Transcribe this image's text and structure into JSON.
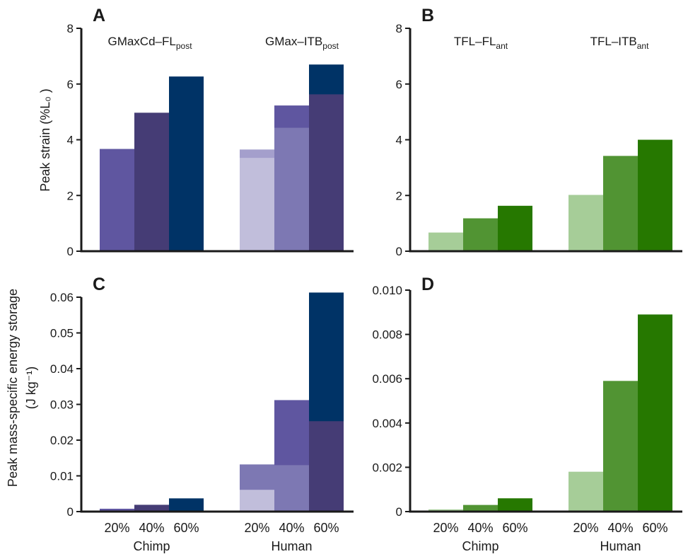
{
  "figure": {
    "ylabel_top": "Peak strain (%L₀ )",
    "ylabel_bottom_line1": "Peak mass-specific energy storage",
    "ylabel_bottom_line2": "(J kg⁻¹)",
    "colors": {
      "purple": [
        "#c1bedb",
        "#7d78b3",
        "#5f56a0",
        "#453c75",
        "#003366"
      ],
      "purple_light_cap": "#a49fcc",
      "green": [
        "#a6cd98",
        "#519433",
        "#267800"
      ]
    }
  },
  "chart_data": [
    {
      "panel": "A",
      "type": "bar",
      "stacked_overlay": true,
      "ylabel": "Peak strain (%L0 )",
      "ylim": [
        0,
        8
      ],
      "yticks": [
        "0",
        "2",
        "4",
        "6",
        "8"
      ],
      "groups": [
        "Chimp",
        "Human"
      ],
      "categories": [
        "20%",
        "40%",
        "60%"
      ],
      "series_labels": [
        {
          "main": "GMaxCd–FL",
          "sub": "post"
        },
        {
          "main": "GMax–ITB",
          "sub": "post"
        }
      ],
      "bars": [
        {
          "group": "Chimp",
          "category": "20%",
          "value": 3.67,
          "base": null
        },
        {
          "group": "Chimp",
          "category": "40%",
          "value": 4.97,
          "base": null
        },
        {
          "group": "Chimp",
          "category": "60%",
          "value": 6.27,
          "base": null
        },
        {
          "group": "Human",
          "category": "20%",
          "value": 3.65,
          "base": 3.35
        },
        {
          "group": "Human",
          "category": "40%",
          "value": 5.23,
          "base": 4.43
        },
        {
          "group": "Human",
          "category": "60%",
          "value": 6.7,
          "base": 5.63
        }
      ]
    },
    {
      "panel": "B",
      "type": "bar",
      "ylim": [
        0,
        8
      ],
      "yticks": [
        "0",
        "2",
        "4",
        "6",
        "8"
      ],
      "groups": [
        "Chimp",
        "Human"
      ],
      "categories": [
        "20%",
        "40%",
        "60%"
      ],
      "series_labels": [
        {
          "main": "TFL–FL",
          "sub": "ant"
        },
        {
          "main": "TFL–ITB",
          "sub": "ant"
        }
      ],
      "bars": [
        {
          "group": "Chimp",
          "category": "20%",
          "value": 0.67
        },
        {
          "group": "Chimp",
          "category": "40%",
          "value": 1.18
        },
        {
          "group": "Chimp",
          "category": "60%",
          "value": 1.63
        },
        {
          "group": "Human",
          "category": "20%",
          "value": 2.02
        },
        {
          "group": "Human",
          "category": "40%",
          "value": 3.42
        },
        {
          "group": "Human",
          "category": "60%",
          "value": 4.0
        }
      ]
    },
    {
      "panel": "C",
      "type": "bar",
      "stacked_overlay": true,
      "ylabel": "Peak mass-specific energy storage (J kg-1)",
      "ylim": [
        0,
        0.06
      ],
      "yticks": [
        "0",
        "0.01",
        "0.02",
        "0.03",
        "0.04",
        "0.05",
        "0.06"
      ],
      "groups": [
        "Chimp",
        "Human"
      ],
      "categories": [
        "20%",
        "40%",
        "60%"
      ],
      "bars": [
        {
          "group": "Chimp",
          "category": "20%",
          "value": 0.0008,
          "base": null
        },
        {
          "group": "Chimp",
          "category": "40%",
          "value": 0.0019,
          "base": null
        },
        {
          "group": "Chimp",
          "category": "60%",
          "value": 0.0037,
          "base": null
        },
        {
          "group": "Human",
          "category": "20%",
          "value": 0.0132,
          "base": 0.0061
        },
        {
          "group": "Human",
          "category": "40%",
          "value": 0.0312,
          "base": 0.013
        },
        {
          "group": "Human",
          "category": "60%",
          "value": 0.0613,
          "base": 0.0253
        }
      ]
    },
    {
      "panel": "D",
      "type": "bar",
      "ylim": [
        0,
        0.01
      ],
      "yticks": [
        "0",
        "0.002",
        "0.004",
        "0.006",
        "0.008",
        "0.010"
      ],
      "groups": [
        "Chimp",
        "Human"
      ],
      "categories": [
        "20%",
        "40%",
        "60%"
      ],
      "bars": [
        {
          "group": "Chimp",
          "category": "20%",
          "value": 0.0001
        },
        {
          "group": "Chimp",
          "category": "40%",
          "value": 0.0003
        },
        {
          "group": "Chimp",
          "category": "60%",
          "value": 0.0006
        },
        {
          "group": "Human",
          "category": "20%",
          "value": 0.0018
        },
        {
          "group": "Human",
          "category": "40%",
          "value": 0.0059
        },
        {
          "group": "Human",
          "category": "60%",
          "value": 0.0089
        }
      ]
    }
  ]
}
